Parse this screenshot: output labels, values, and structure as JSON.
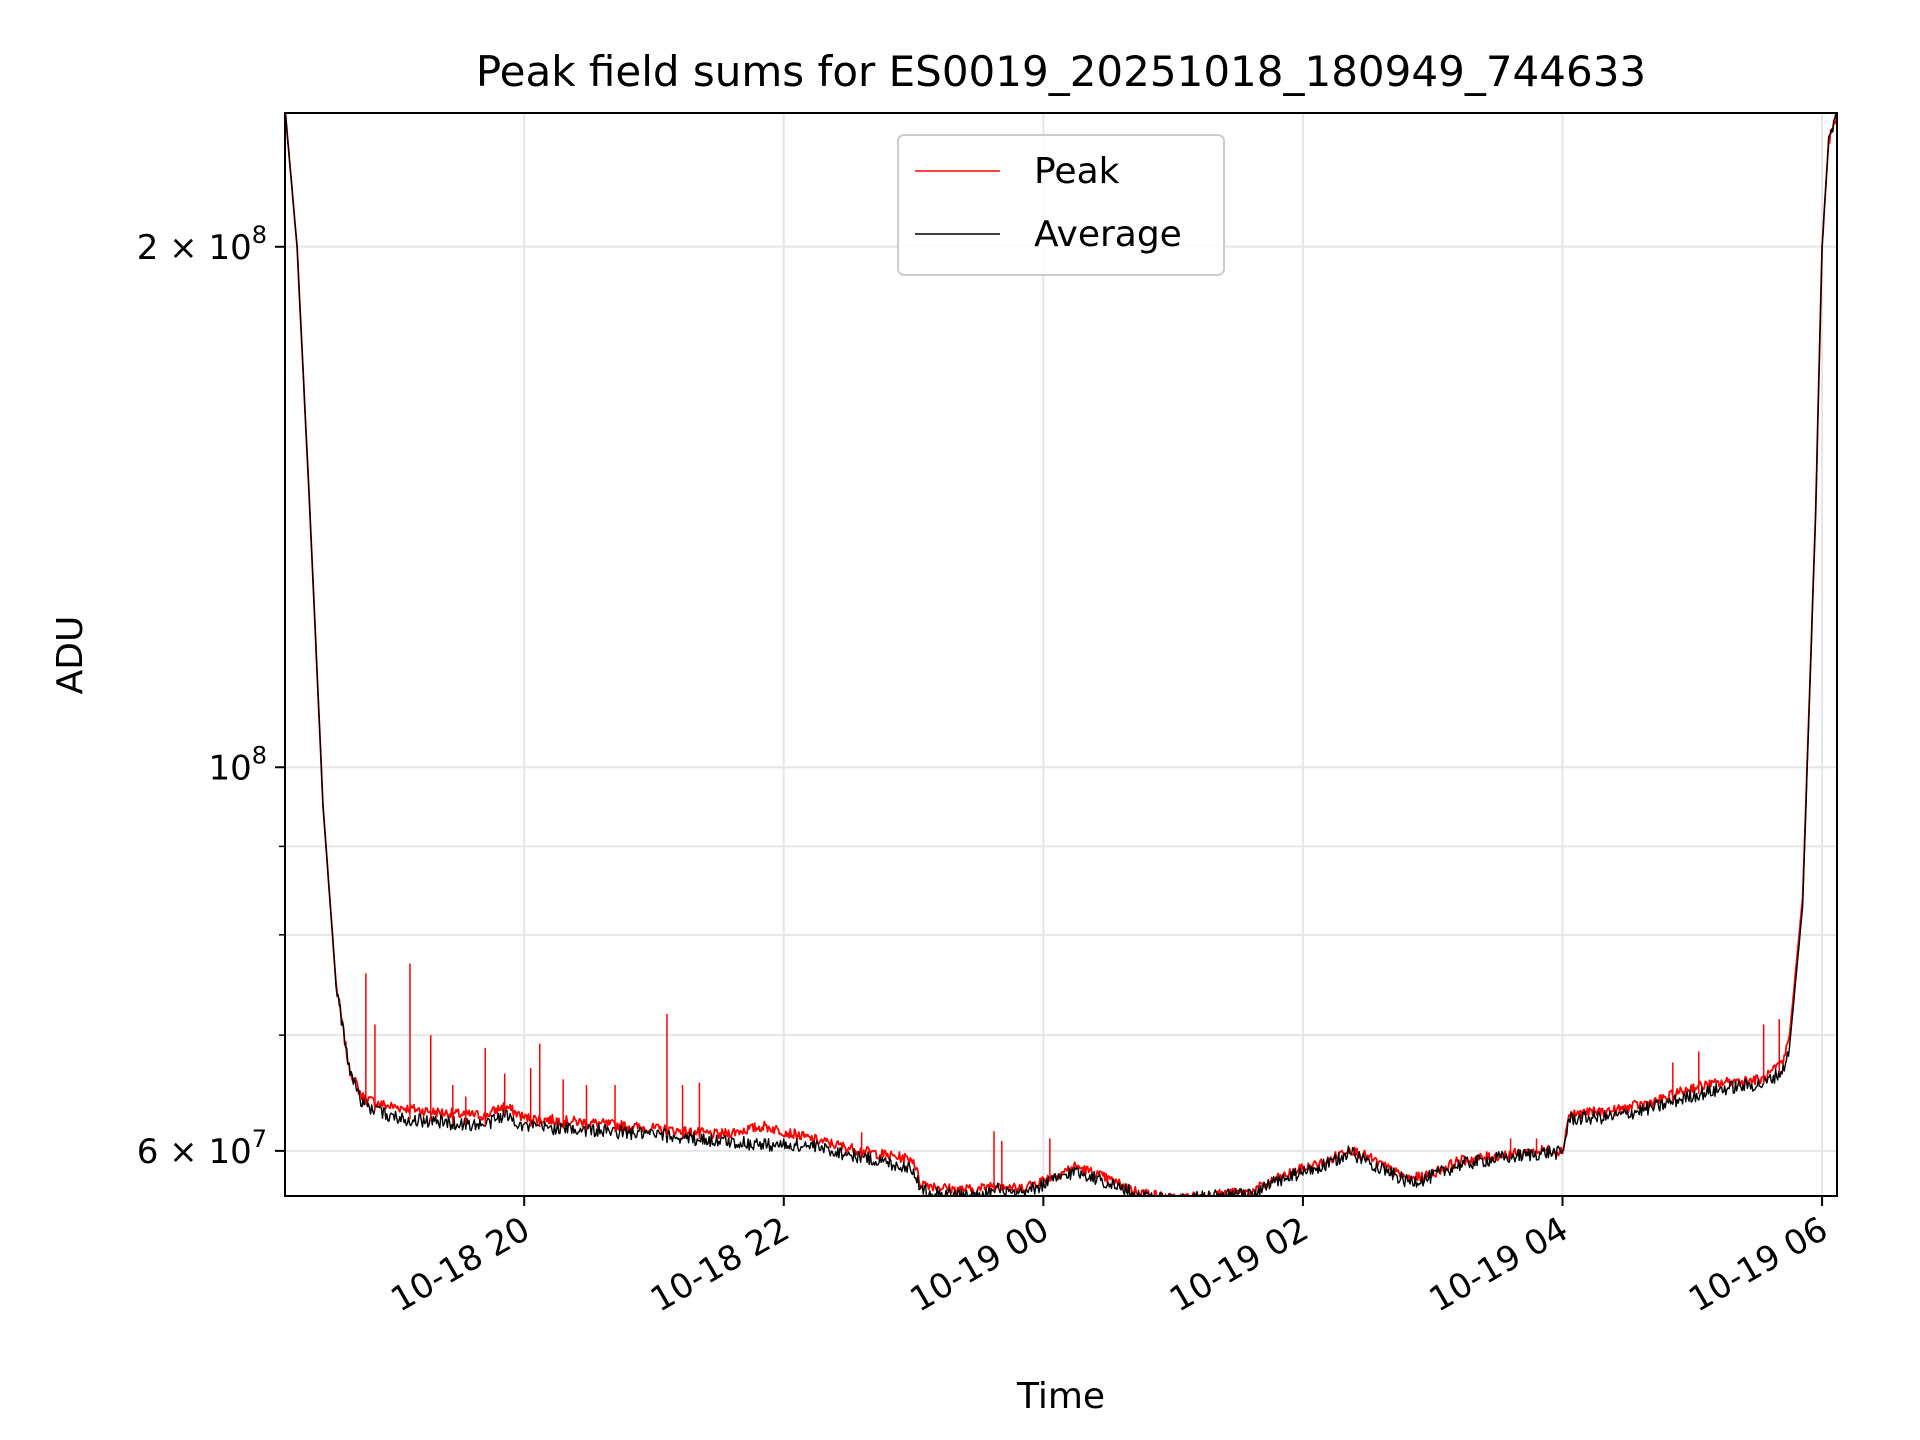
{
  "chart_data": {
    "type": "line",
    "title": "Peak field sums for ES0019_20251018_180949_744633",
    "xlabel": "Time",
    "ylabel": "ADU",
    "yscale": "log",
    "xlim_hours": [
      18.157,
      30.115
    ],
    "ylim": [
      56500000,
      239000000
    ],
    "grid": true,
    "legend_position": "upper center",
    "x_ticks": [
      {
        "hour": 20,
        "label": "10-18 20"
      },
      {
        "hour": 22,
        "label": "10-18 22"
      },
      {
        "hour": 24,
        "label": "10-19 00"
      },
      {
        "hour": 26,
        "label": "10-19 02"
      },
      {
        "hour": 28,
        "label": "10-19 04"
      },
      {
        "hour": 30,
        "label": "10-19 06"
      }
    ],
    "y_ticks_major": [
      {
        "value": 60000000,
        "mantissa": "6",
        "base": "10",
        "exp": "7"
      },
      {
        "value": 100000000,
        "mantissa": "",
        "base": "10",
        "exp": "8"
      },
      {
        "value": 200000000,
        "mantissa": "2",
        "base": "10",
        "exp": "8"
      }
    ],
    "y_ticks_minor": [
      70000000,
      80000000,
      90000000
    ],
    "series": [
      {
        "name": "Peak",
        "color": "#ff0000",
        "x_hours": [
          18.16,
          18.25,
          18.35,
          18.45,
          18.55,
          18.65,
          18.75,
          18.85,
          18.95,
          19.1,
          19.3,
          19.5,
          19.7,
          19.85,
          20.0,
          20.5,
          21.0,
          21.5,
          21.85,
          22.2,
          22.6,
          23.0,
          23.05,
          23.3,
          23.5,
          23.65,
          23.8,
          24.1,
          24.25,
          24.45,
          24.7,
          25.0,
          25.3,
          25.6,
          25.8,
          26.0,
          26.2,
          26.35,
          26.5,
          26.8,
          26.95,
          27.2,
          27.5,
          27.9,
          28.0,
          28.05,
          28.4,
          28.75,
          29.0,
          29.3,
          29.55,
          29.7,
          29.75,
          29.85,
          29.95,
          30.0,
          30.05,
          30.115
        ],
        "values": [
          239000000,
          200000000,
          140000000,
          95000000,
          75000000,
          67000000,
          64500000,
          64000000,
          63700000,
          63500000,
          63200000,
          63000000,
          62900000,
          63700000,
          62700000,
          62300000,
          61800000,
          61300000,
          62000000,
          61000000,
          60000000,
          59300000,
          57500000,
          57000000,
          57000000,
          57500000,
          57000000,
          58100000,
          58800000,
          58000000,
          56900000,
          56300000,
          56600000,
          56800000,
          57800000,
          58600000,
          59200000,
          60200000,
          59500000,
          57800000,
          58000000,
          59200000,
          59600000,
          60100000,
          60000000,
          63000000,
          63300000,
          64200000,
          65300000,
          65800000,
          66000000,
          67500000,
          70000000,
          84000000,
          140000000,
          200000000,
          230000000,
          239000000
        ]
      },
      {
        "name": "Average",
        "color": "#000000",
        "x_hours": [
          18.16,
          18.25,
          18.35,
          18.45,
          18.55,
          18.65,
          18.75,
          18.85,
          18.95,
          19.1,
          19.3,
          19.5,
          19.7,
          19.85,
          20.0,
          20.5,
          21.0,
          21.5,
          21.85,
          22.2,
          22.6,
          23.0,
          23.05,
          23.3,
          23.5,
          23.65,
          23.8,
          24.1,
          24.25,
          24.45,
          24.7,
          25.0,
          25.3,
          25.6,
          25.8,
          26.0,
          26.2,
          26.35,
          26.5,
          26.8,
          26.95,
          27.2,
          27.5,
          27.9,
          28.0,
          28.05,
          28.4,
          28.75,
          29.0,
          29.3,
          29.55,
          29.7,
          29.75,
          29.85,
          29.95,
          30.0,
          30.05,
          30.115
        ],
        "values": [
          239000000,
          200000000,
          140000000,
          95000000,
          75000000,
          67000000,
          64000000,
          63300000,
          62900000,
          62600000,
          62400000,
          62200000,
          62100000,
          63000000,
          62000000,
          61700000,
          61300000,
          60800000,
          60500000,
          60400000,
          59500000,
          58600000,
          57000000,
          56600000,
          56500000,
          57000000,
          56500000,
          57800000,
          58400000,
          57700000,
          56700000,
          56100000,
          56500000,
          56600000,
          57600000,
          58300000,
          58900000,
          59900000,
          59200000,
          57600000,
          57800000,
          58900000,
          59400000,
          59900000,
          59800000,
          62600000,
          62800000,
          63700000,
          64600000,
          65300000,
          65600000,
          66800000,
          69000000,
          83000000,
          140000000,
          200000000,
          230000000,
          239000000
        ]
      }
    ],
    "spikes": [
      {
        "hour": 18.78,
        "peak": 76000000
      },
      {
        "hour": 18.85,
        "peak": 71000000
      },
      {
        "hour": 19.12,
        "peak": 77000000
      },
      {
        "hour": 19.28,
        "peak": 70000000
      },
      {
        "hour": 19.45,
        "peak": 65500000
      },
      {
        "hour": 19.55,
        "peak": 64500000
      },
      {
        "hour": 19.7,
        "peak": 68800000
      },
      {
        "hour": 19.85,
        "peak": 66500000
      },
      {
        "hour": 20.05,
        "peak": 67000000
      },
      {
        "hour": 20.12,
        "peak": 69200000
      },
      {
        "hour": 20.3,
        "peak": 66000000
      },
      {
        "hour": 20.48,
        "peak": 65500000
      },
      {
        "hour": 20.7,
        "peak": 65500000
      },
      {
        "hour": 21.1,
        "peak": 72000000
      },
      {
        "hour": 21.22,
        "peak": 65500000
      },
      {
        "hour": 21.35,
        "peak": 65700000
      },
      {
        "hour": 22.6,
        "peak": 61500000
      },
      {
        "hour": 23.62,
        "peak": 61600000
      },
      {
        "hour": 23.68,
        "peak": 60800000
      },
      {
        "hour": 24.05,
        "peak": 61000000
      },
      {
        "hour": 27.6,
        "peak": 61000000
      },
      {
        "hour": 27.8,
        "peak": 61000000
      },
      {
        "hour": 28.85,
        "peak": 67500000
      },
      {
        "hour": 29.05,
        "peak": 68500000
      },
      {
        "hour": 29.55,
        "peak": 71000000
      },
      {
        "hour": 29.67,
        "peak": 71500000
      }
    ]
  }
}
